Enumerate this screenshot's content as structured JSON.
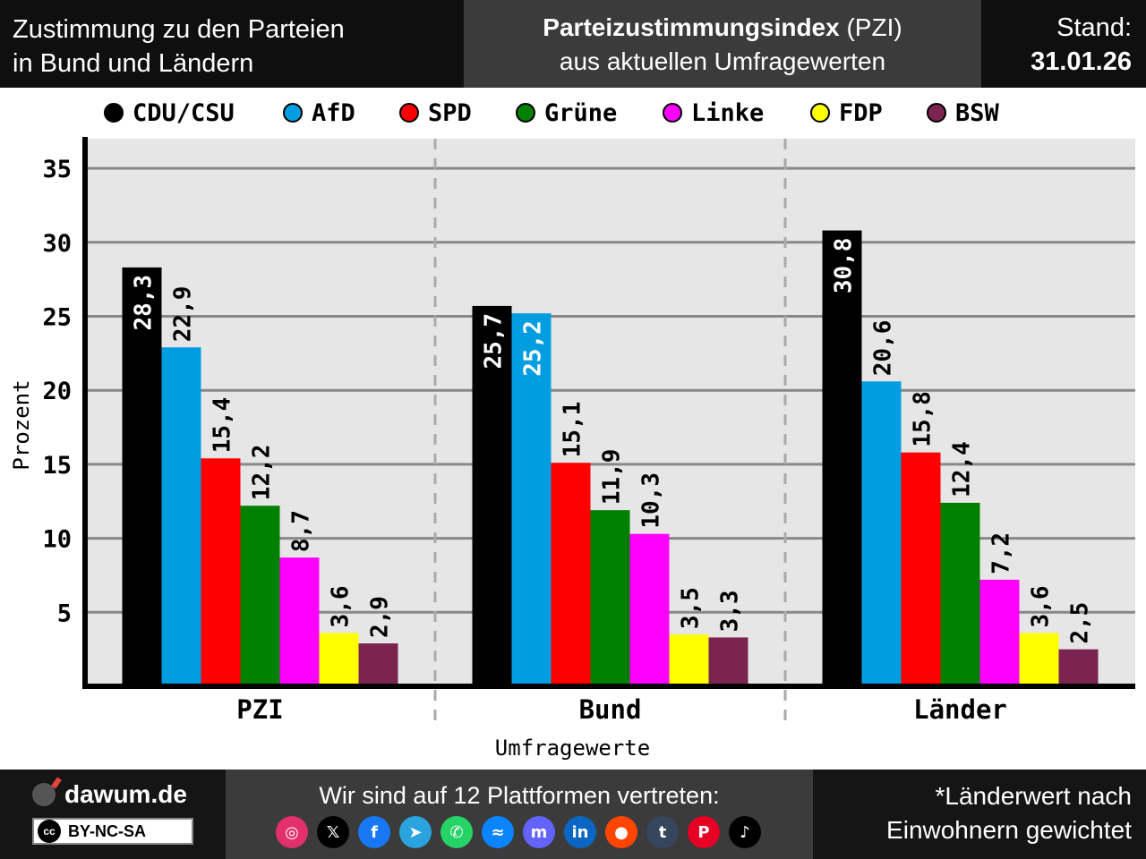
{
  "header": {
    "left_line1": "Zustimmung zu den Parteien",
    "left_line2": "in Bund und Ländern",
    "mid_bold": "Parteizustimmungsindex",
    "mid_rest": " (PZI)",
    "mid_line2": "aus aktuellen Umfragewerten",
    "stand_label": "Stand:",
    "stand_date": "31.01.26"
  },
  "colors": {
    "CDU/CSU": "#000000",
    "AfD": "#009ee0",
    "SPD": "#ff0000",
    "Grüne": "#008000",
    "Linke": "#ff00ff",
    "FDP": "#ffff00",
    "BSW": "#7b2450"
  },
  "chart_data": {
    "type": "bar",
    "xlabel": "Umfragewerte",
    "ylabel": "Prozent",
    "ylim": [
      0,
      37
    ],
    "yticks": [
      5,
      10,
      15,
      20,
      25,
      30,
      35
    ],
    "grid": true,
    "legend_position": "top",
    "categories": [
      "PZI",
      "Bund",
      "Länder"
    ],
    "series": [
      {
        "name": "CDU/CSU",
        "values": [
          28.3,
          25.7,
          30.8
        ],
        "labels": [
          "28,3",
          "25,7",
          "30,8"
        ]
      },
      {
        "name": "AfD",
        "values": [
          22.9,
          25.2,
          20.6
        ],
        "labels": [
          "22,9",
          "25,2",
          "20,6"
        ]
      },
      {
        "name": "SPD",
        "values": [
          15.4,
          15.1,
          15.8
        ],
        "labels": [
          "15,4",
          "15,1",
          "15,8"
        ]
      },
      {
        "name": "Grüne",
        "values": [
          12.2,
          11.9,
          12.4
        ],
        "labels": [
          "12,2",
          "11,9",
          "12,4"
        ]
      },
      {
        "name": "Linke",
        "values": [
          8.7,
          10.3,
          7.2
        ],
        "labels": [
          "8,7",
          "10,3",
          "7,2"
        ]
      },
      {
        "name": "FDP",
        "values": [
          3.6,
          3.5,
          3.6
        ],
        "labels": [
          "3,6",
          "3,5",
          "3,6"
        ]
      },
      {
        "name": "BSW",
        "values": [
          2.9,
          3.3,
          2.5
        ],
        "labels": [
          "2,9",
          "3,3",
          "2,5"
        ]
      }
    ]
  },
  "footer": {
    "site": "dawum.de",
    "license": "BY-NC-SA",
    "license_badge": "cc",
    "platform_text": "Wir sind auf 12 Plattformen vertreten:",
    "platforms": [
      {
        "icon": "instagram-icon",
        "glyph": "◎",
        "color": "#e1306c"
      },
      {
        "icon": "x-icon",
        "glyph": "𝕏",
        "color": "#000000"
      },
      {
        "icon": "facebook-icon",
        "glyph": "f",
        "color": "#1877f2"
      },
      {
        "icon": "telegram-icon",
        "glyph": "➤",
        "color": "#2aa3de"
      },
      {
        "icon": "whatsapp-icon",
        "glyph": "✆",
        "color": "#25d366"
      },
      {
        "icon": "bluesky-icon",
        "glyph": "≈",
        "color": "#0a84ff"
      },
      {
        "icon": "mastodon-icon",
        "glyph": "m",
        "color": "#6364ff"
      },
      {
        "icon": "linkedin-icon",
        "glyph": "in",
        "color": "#0a66c2"
      },
      {
        "icon": "reddit-icon",
        "glyph": "●",
        "color": "#ff4500"
      },
      {
        "icon": "tumblr-icon",
        "glyph": "t",
        "color": "#36465d"
      },
      {
        "icon": "pinterest-icon",
        "glyph": "P",
        "color": "#e60023"
      },
      {
        "icon": "tiktok-icon",
        "glyph": "♪",
        "color": "#000000"
      }
    ],
    "note_line1": "*Länderwert nach",
    "note_line2": "Einwohnern gewichtet"
  }
}
